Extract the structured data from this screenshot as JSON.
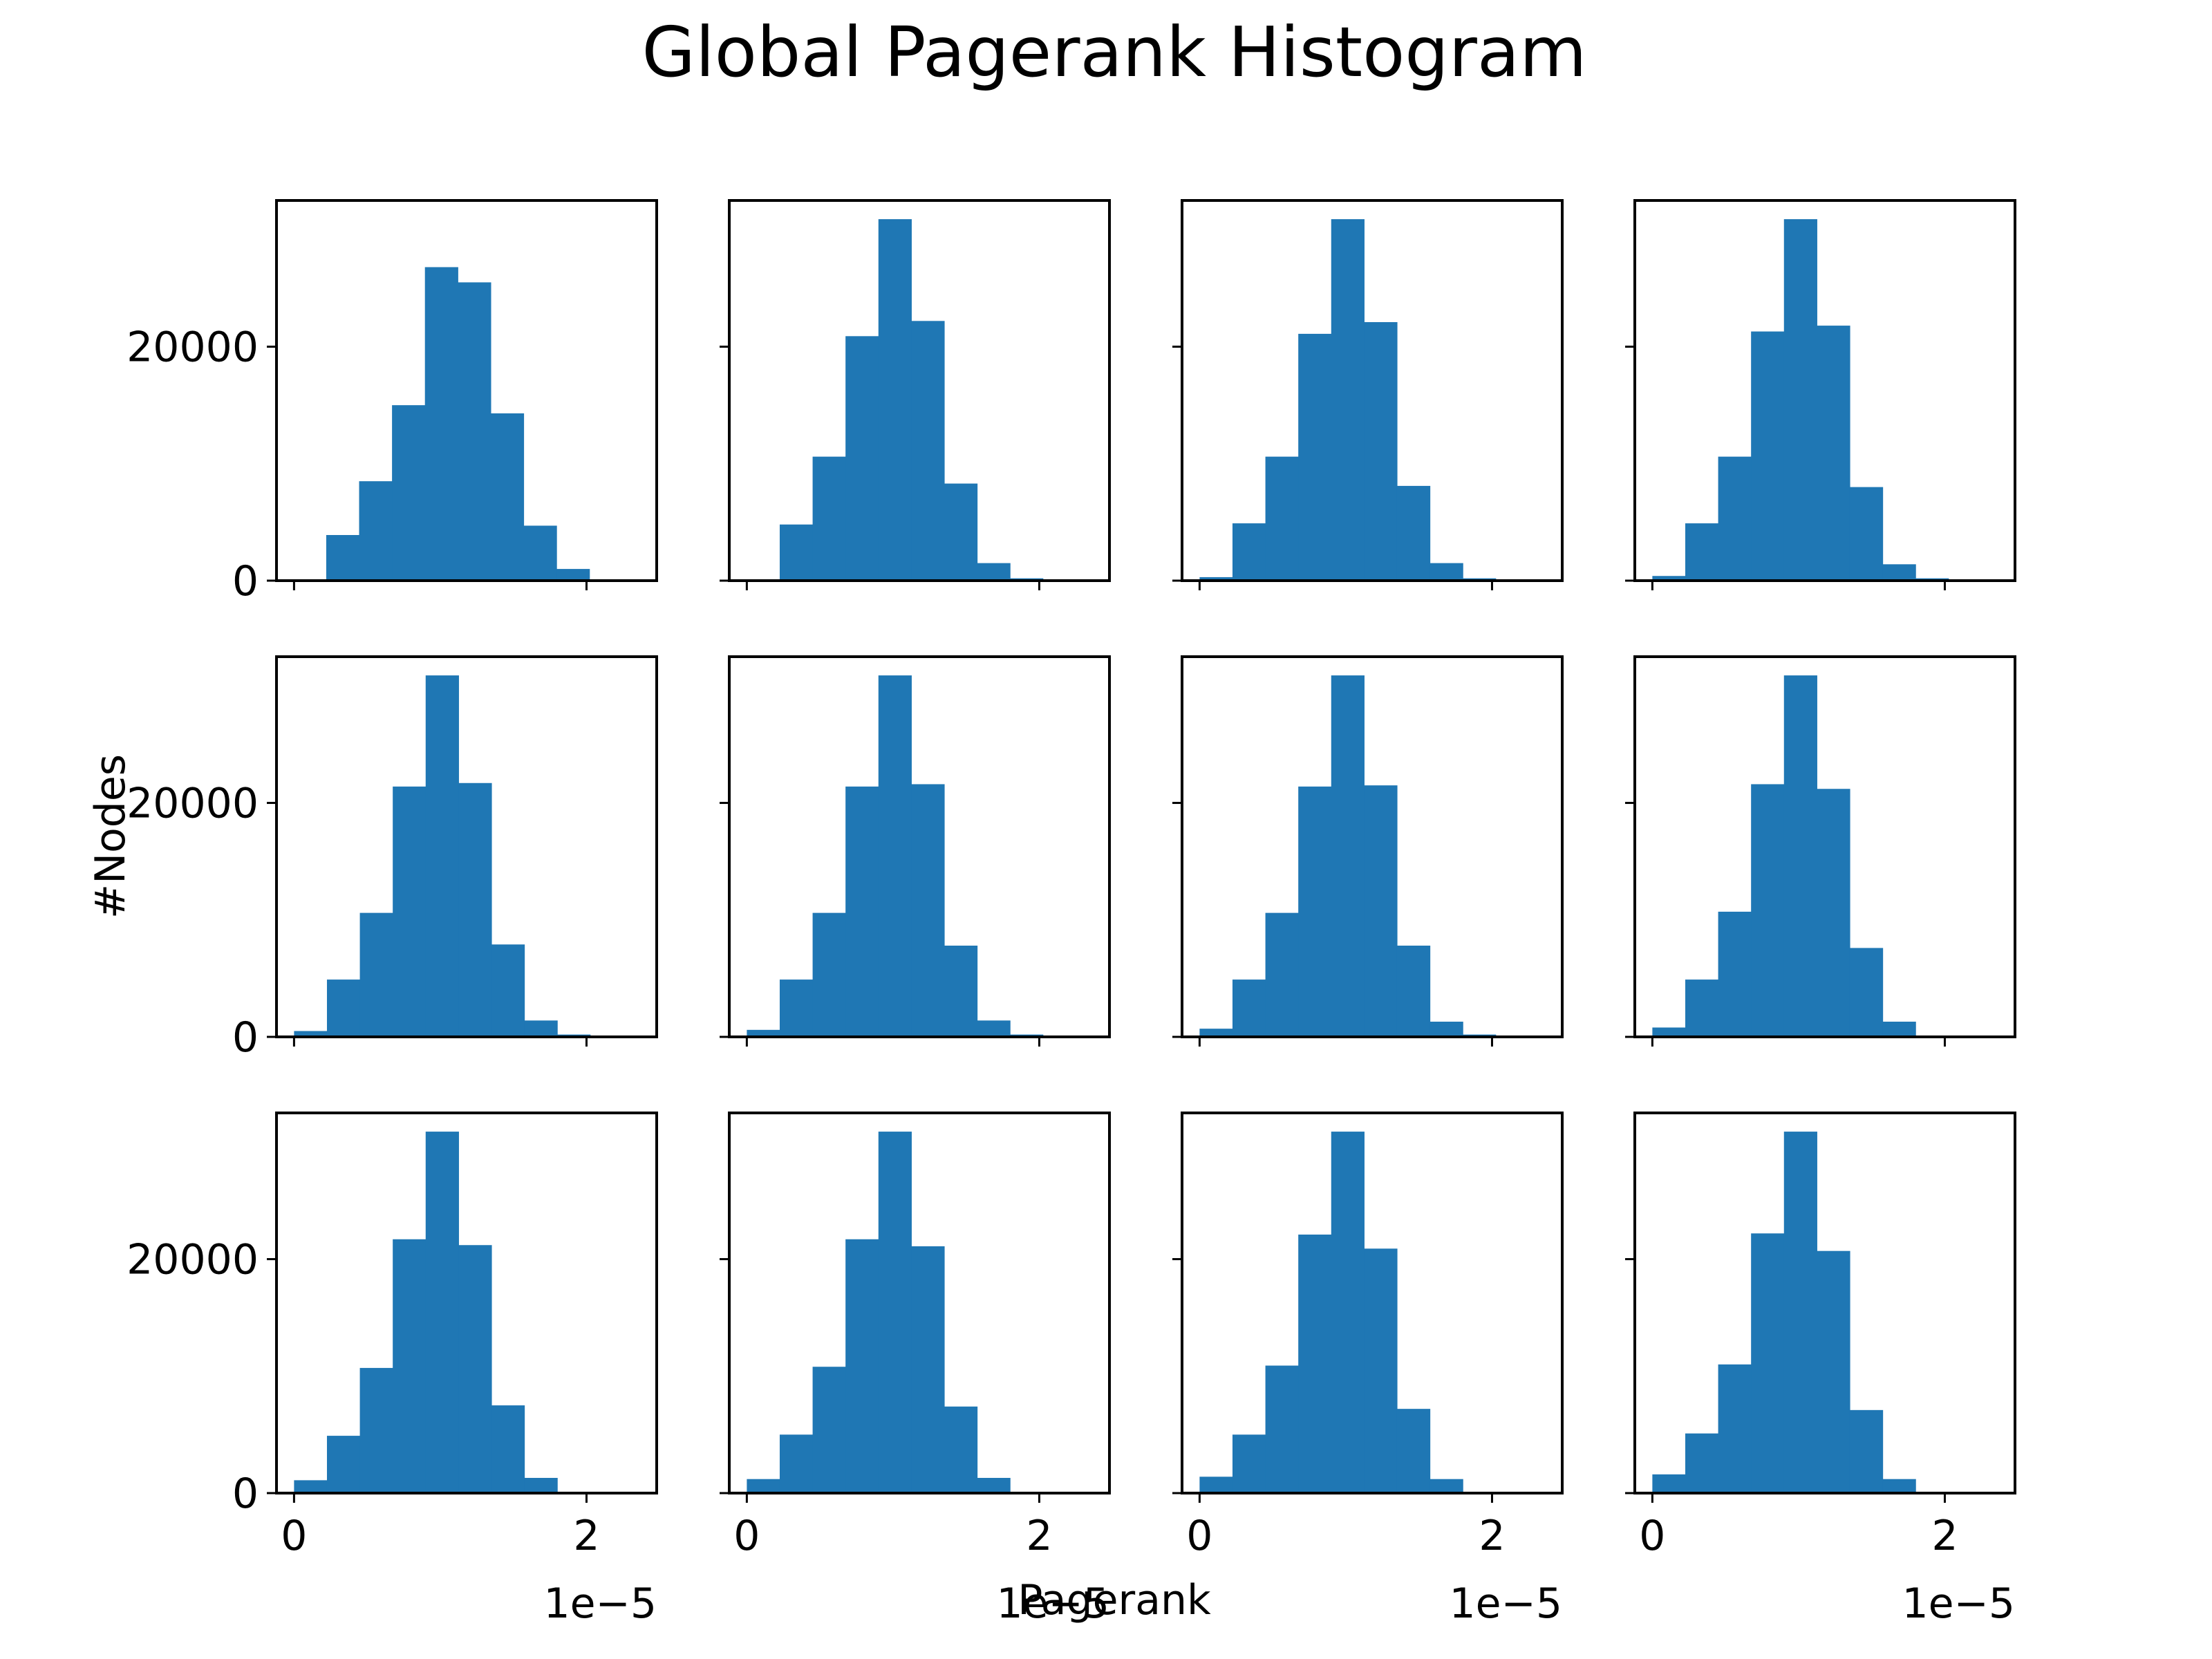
{
  "title": "Global Pagerank Histogram",
  "xlabel": "Pagerank",
  "ylabel": "#Nodes",
  "offset_text": "1e−5",
  "colors": {
    "bar": "#1f77b4",
    "axes": "#000000",
    "background": "#ffffff"
  },
  "chart_data": {
    "type": "bar",
    "title": "Global Pagerank Histogram",
    "xlabel": "Pagerank",
    "ylabel": "#Nodes",
    "x_scale_note": "1e−5",
    "layout": "3 rows x 4 columns of histograms, shared axes",
    "xlim": [
      -0.12,
      2.48
    ],
    "ylim": [
      0,
      32500
    ],
    "xticks": [
      0,
      2
    ],
    "xtick_labels": [
      "0",
      "2"
    ],
    "yticks": [
      0,
      20000
    ],
    "ytick_labels": [
      "0",
      "20000"
    ],
    "grid": false,
    "panels": [
      {
        "bins": [
          0.22,
          0.445,
          0.67,
          0.895,
          1.12,
          1.345,
          1.57,
          1.795,
          2.02,
          2.245
        ],
        "values": [
          3900,
          8500,
          15000,
          26800,
          25500,
          14300,
          4700,
          1000,
          100
        ]
      },
      {
        "bins": [
          0.0,
          0.225,
          0.45,
          0.675,
          0.9,
          1.125,
          1.35,
          1.575,
          1.8,
          2.025,
          2.25
        ],
        "values": [
          0,
          4800,
          10600,
          20900,
          30900,
          22200,
          8300,
          1500,
          200,
          0
        ]
      },
      {
        "bins": [
          0.0,
          0.225,
          0.45,
          0.675,
          0.9,
          1.125,
          1.35,
          1.575,
          1.8,
          2.025,
          2.25
        ],
        "values": [
          300,
          4900,
          10600,
          21100,
          30900,
          22100,
          8100,
          1500,
          200,
          0
        ]
      },
      {
        "bins": [
          0.0,
          0.225,
          0.45,
          0.675,
          0.9,
          1.125,
          1.35,
          1.575,
          1.8,
          2.025,
          2.25
        ],
        "values": [
          400,
          4900,
          10600,
          21300,
          30900,
          21800,
          8000,
          1400,
          200,
          0
        ]
      },
      {
        "bins": [
          0.0,
          0.225,
          0.45,
          0.675,
          0.9,
          1.125,
          1.35,
          1.575,
          1.8,
          2.025,
          2.25
        ],
        "values": [
          500,
          4900,
          10600,
          21400,
          30900,
          21700,
          7900,
          1400,
          200,
          0
        ]
      },
      {
        "bins": [
          0.0,
          0.225,
          0.45,
          0.675,
          0.9,
          1.125,
          1.35,
          1.575,
          1.8,
          2.025,
          2.25
        ],
        "values": [
          600,
          4900,
          10600,
          21400,
          30900,
          21600,
          7800,
          1400,
          200,
          0
        ]
      },
      {
        "bins": [
          0.0,
          0.225,
          0.45,
          0.675,
          0.9,
          1.125,
          1.35,
          1.575,
          1.8,
          2.025,
          2.25
        ],
        "values": [
          700,
          4900,
          10600,
          21400,
          30900,
          21500,
          7800,
          1300,
          200,
          0
        ]
      },
      {
        "bins": [
          0.0,
          0.225,
          0.45,
          0.675,
          0.9,
          1.125,
          1.35,
          1.575,
          1.8,
          2.025,
          2.25
        ],
        "values": [
          800,
          4900,
          10700,
          21600,
          30900,
          21200,
          7600,
          1300,
          100,
          0
        ]
      },
      {
        "bins": [
          0.0,
          0.225,
          0.45,
          0.675,
          0.9,
          1.125,
          1.35,
          1.575,
          1.8,
          2.025,
          2.25
        ],
        "values": [
          1100,
          4900,
          10700,
          21700,
          30900,
          21200,
          7500,
          1300,
          100,
          0
        ]
      },
      {
        "bins": [
          0.0,
          0.225,
          0.45,
          0.675,
          0.9,
          1.125,
          1.35,
          1.575,
          1.8,
          2.025,
          2.25
        ],
        "values": [
          1200,
          5000,
          10800,
          21700,
          30900,
          21100,
          7400,
          1300,
          100,
          0
        ]
      },
      {
        "bins": [
          0.0,
          0.225,
          0.45,
          0.675,
          0.9,
          1.125,
          1.35,
          1.575,
          1.8,
          2.025,
          2.25
        ],
        "values": [
          1400,
          5000,
          10900,
          22100,
          30900,
          20900,
          7200,
          1200,
          100,
          0
        ]
      },
      {
        "bins": [
          0.0,
          0.225,
          0.45,
          0.675,
          0.9,
          1.125,
          1.35,
          1.575,
          1.8,
          2.025,
          2.25
        ],
        "values": [
          1600,
          5100,
          11000,
          22200,
          30900,
          20700,
          7100,
          1200,
          100,
          0
        ]
      }
    ]
  }
}
